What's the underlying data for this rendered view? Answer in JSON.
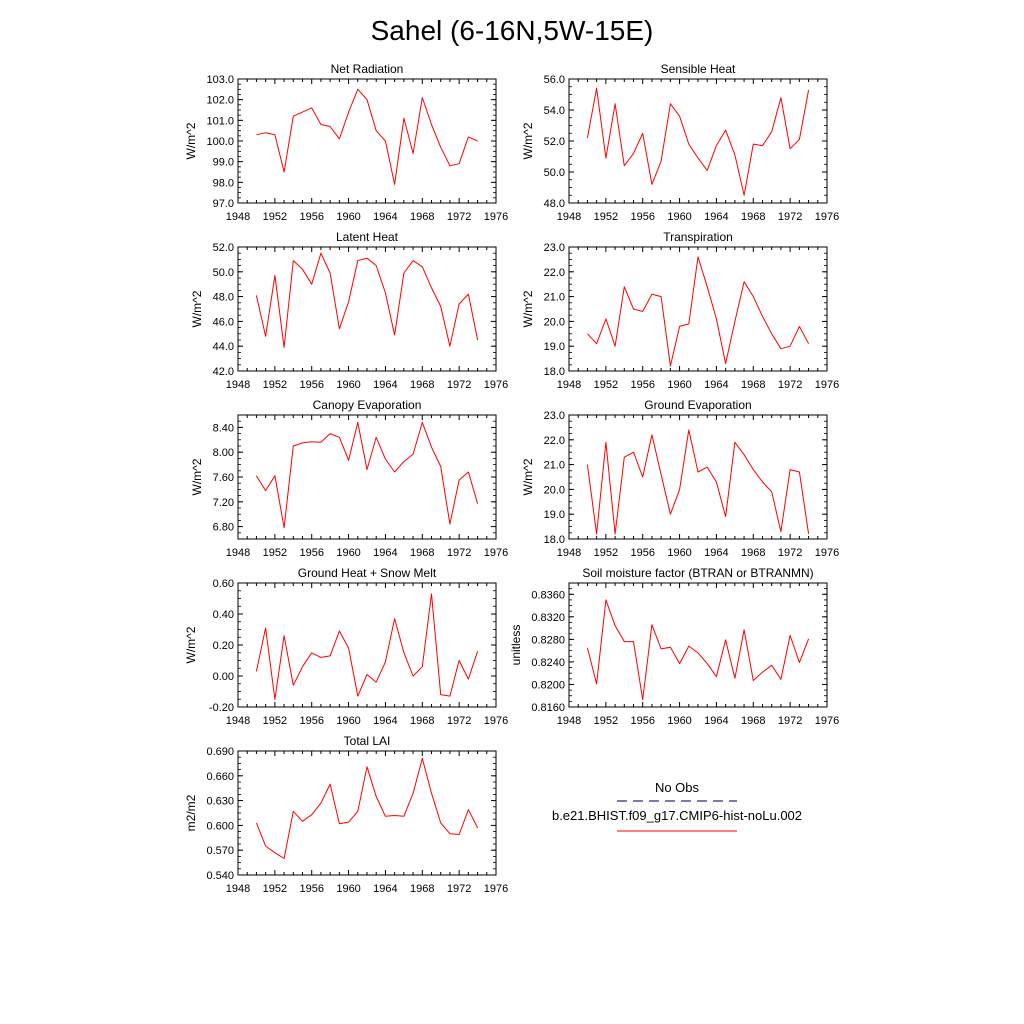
{
  "figure": {
    "title": "Sahel (6-16N,5W-15E)",
    "line_color": "#ff0000",
    "legend": {
      "obs_label": "No Obs",
      "model_label": "b.e21.BHIST.f09_g17.CMIP6-hist-noLu.002",
      "obs_color": "#4b4b9c",
      "model_color": "#ff0000"
    }
  },
  "chart_data": [
    {
      "type": "line",
      "title": "Net Radiation",
      "ylabel": "W/m^2",
      "xlim": [
        1948,
        1976
      ],
      "ylim": [
        97,
        103
      ],
      "x_ticks": [
        "1948",
        "1952",
        "1956",
        "1960",
        "1964",
        "1968",
        "1972",
        "1976"
      ],
      "y_ticks": [
        "97.0",
        "98.0",
        "99.0",
        "100.0",
        "101.0",
        "102.0",
        "103.0"
      ],
      "x": [
        1950,
        1951,
        1952,
        1953,
        1954,
        1955,
        1956,
        1957,
        1958,
        1959,
        1960,
        1961,
        1962,
        1963,
        1964,
        1965,
        1966,
        1967,
        1968,
        1969,
        1970,
        1971,
        1972,
        1973,
        1974
      ],
      "series": [
        {
          "values": [
            100.3,
            100.4,
            100.3,
            98.5,
            101.2,
            101.4,
            101.6,
            100.8,
            100.7,
            100.1,
            101.4,
            102.5,
            102.0,
            100.5,
            100.0,
            97.9,
            101.1,
            99.4,
            102.1,
            100.8,
            99.7,
            98.8,
            98.9,
            100.2,
            100.0
          ]
        }
      ]
    },
    {
      "type": "line",
      "title": "Sensible Heat",
      "ylabel": "W/m^2",
      "xlim": [
        1948,
        1976
      ],
      "ylim": [
        48,
        56
      ],
      "x_ticks": [
        "1948",
        "1952",
        "1956",
        "1960",
        "1964",
        "1968",
        "1972",
        "1976"
      ],
      "y_ticks": [
        "48.0",
        "50.0",
        "52.0",
        "54.0",
        "56.0"
      ],
      "x": [
        1950,
        1951,
        1952,
        1953,
        1954,
        1955,
        1956,
        1957,
        1958,
        1959,
        1960,
        1961,
        1962,
        1963,
        1964,
        1965,
        1966,
        1967,
        1968,
        1969,
        1970,
        1971,
        1972,
        1973,
        1974
      ],
      "series": [
        {
          "values": [
            52.2,
            55.4,
            50.9,
            54.4,
            50.4,
            51.2,
            52.5,
            49.2,
            50.7,
            54.4,
            53.6,
            51.8,
            50.9,
            50.1,
            51.7,
            52.7,
            51.1,
            48.5,
            51.8,
            51.7,
            52.6,
            54.8,
            51.5,
            52.1,
            55.3
          ]
        }
      ]
    },
    {
      "type": "line",
      "title": "Latent Heat",
      "ylabel": "W/m^2",
      "xlim": [
        1948,
        1976
      ],
      "ylim": [
        42,
        52
      ],
      "x_ticks": [
        "1948",
        "1952",
        "1956",
        "1960",
        "1964",
        "1968",
        "1972",
        "1976"
      ],
      "y_ticks": [
        "42.0",
        "44.0",
        "46.0",
        "48.0",
        "50.0",
        "52.0"
      ],
      "x": [
        1950,
        1951,
        1952,
        1953,
        1954,
        1955,
        1956,
        1957,
        1958,
        1959,
        1960,
        1961,
        1962,
        1963,
        1964,
        1965,
        1966,
        1967,
        1968,
        1969,
        1970,
        1971,
        1972,
        1973,
        1974
      ],
      "series": [
        {
          "values": [
            48.1,
            44.8,
            49.7,
            43.9,
            50.9,
            50.2,
            49.0,
            51.5,
            49.9,
            45.4,
            47.6,
            50.9,
            51.1,
            50.5,
            48.3,
            44.9,
            49.9,
            50.9,
            50.4,
            48.7,
            47.2,
            44.0,
            47.4,
            48.2,
            44.5
          ]
        }
      ]
    },
    {
      "type": "line",
      "title": "Transpiration",
      "ylabel": "W/m^2",
      "xlim": [
        1948,
        1976
      ],
      "ylim": [
        18,
        23
      ],
      "x_ticks": [
        "1948",
        "1952",
        "1956",
        "1960",
        "1964",
        "1968",
        "1972",
        "1976"
      ],
      "y_ticks": [
        "18.0",
        "19.0",
        "20.0",
        "21.0",
        "22.0",
        "23.0"
      ],
      "x": [
        1950,
        1951,
        1952,
        1953,
        1954,
        1955,
        1956,
        1957,
        1958,
        1959,
        1960,
        1961,
        1962,
        1963,
        1964,
        1965,
        1966,
        1967,
        1968,
        1969,
        1970,
        1971,
        1972,
        1973,
        1974
      ],
      "series": [
        {
          "values": [
            19.5,
            19.1,
            20.1,
            19.0,
            21.4,
            20.5,
            20.4,
            21.1,
            21.0,
            18.2,
            19.8,
            19.9,
            22.6,
            21.4,
            20.1,
            18.3,
            20.0,
            21.6,
            21.0,
            20.2,
            19.5,
            18.9,
            19.0,
            19.8,
            19.1
          ]
        }
      ]
    },
    {
      "type": "line",
      "title": "Canopy Evaporation",
      "ylabel": "W/m^2",
      "xlim": [
        1948,
        1976
      ],
      "ylim": [
        6.6,
        8.6
      ],
      "x_ticks": [
        "1948",
        "1952",
        "1956",
        "1960",
        "1964",
        "1968",
        "1972",
        "1976"
      ],
      "y_ticks": [
        "6.80",
        "7.20",
        "7.60",
        "8.00",
        "8.40"
      ],
      "x": [
        1950,
        1951,
        1952,
        1953,
        1954,
        1955,
        1956,
        1957,
        1958,
        1959,
        1960,
        1961,
        1962,
        1963,
        1964,
        1965,
        1966,
        1967,
        1968,
        1969,
        1970,
        1971,
        1972,
        1973,
        1974
      ],
      "series": [
        {
          "values": [
            7.62,
            7.38,
            7.62,
            6.78,
            8.1,
            8.15,
            8.17,
            8.16,
            8.3,
            8.24,
            7.87,
            8.48,
            7.72,
            8.24,
            7.89,
            7.68,
            7.85,
            7.97,
            8.48,
            8.08,
            7.77,
            6.84,
            7.55,
            7.68,
            7.17
          ]
        }
      ]
    },
    {
      "type": "line",
      "title": "Ground Evaporation",
      "ylabel": "W/m^2",
      "xlim": [
        1948,
        1976
      ],
      "ylim": [
        18,
        23
      ],
      "x_ticks": [
        "1948",
        "1952",
        "1956",
        "1960",
        "1964",
        "1968",
        "1972",
        "1976"
      ],
      "y_ticks": [
        "18.0",
        "19.0",
        "20.0",
        "21.0",
        "22.0",
        "23.0"
      ],
      "x": [
        1950,
        1951,
        1952,
        1953,
        1954,
        1955,
        1956,
        1957,
        1958,
        1959,
        1960,
        1961,
        1962,
        1963,
        1964,
        1965,
        1966,
        1967,
        1968,
        1969,
        1970,
        1971,
        1972,
        1973,
        1974
      ],
      "series": [
        {
          "values": [
            21.0,
            18.2,
            21.9,
            18.2,
            21.3,
            21.5,
            20.5,
            22.2,
            20.6,
            19.0,
            20.0,
            22.4,
            20.7,
            20.9,
            20.3,
            18.9,
            21.9,
            21.4,
            20.8,
            20.3,
            19.9,
            18.3,
            20.8,
            20.7,
            18.2
          ]
        }
      ]
    },
    {
      "type": "line",
      "title": "Ground Heat + Snow Melt",
      "ylabel": "W/m^2",
      "xlim": [
        1948,
        1976
      ],
      "ylim": [
        -0.2,
        0.6
      ],
      "x_ticks": [
        "1948",
        "1952",
        "1956",
        "1960",
        "1964",
        "1968",
        "1972",
        "1976"
      ],
      "y_ticks": [
        "-0.20",
        "0.00",
        "0.20",
        "0.40",
        "0.60"
      ],
      "x": [
        1950,
        1951,
        1952,
        1953,
        1954,
        1955,
        1956,
        1957,
        1958,
        1959,
        1960,
        1961,
        1962,
        1963,
        1964,
        1965,
        1966,
        1967,
        1968,
        1969,
        1970,
        1971,
        1972,
        1973,
        1974
      ],
      "series": [
        {
          "values": [
            0.03,
            0.31,
            -0.15,
            0.26,
            -0.06,
            0.06,
            0.15,
            0.12,
            0.13,
            0.29,
            0.18,
            -0.13,
            0.01,
            -0.04,
            0.09,
            0.37,
            0.15,
            0.0,
            0.06,
            0.53,
            -0.12,
            -0.13,
            0.1,
            -0.02,
            0.16
          ]
        }
      ]
    },
    {
      "type": "line",
      "title": "Soil moisture factor (BTRAN or BTRANMN)",
      "ylabel": "unitless",
      "xlim": [
        1948,
        1976
      ],
      "ylim": [
        0.816,
        0.838
      ],
      "x_ticks": [
        "1948",
        "1952",
        "1956",
        "1960",
        "1964",
        "1968",
        "1972",
        "1976"
      ],
      "y_ticks": [
        "0.8160",
        "0.8200",
        "0.8240",
        "0.8280",
        "0.8320",
        "0.8360"
      ],
      "x": [
        1950,
        1951,
        1952,
        1953,
        1954,
        1955,
        1956,
        1957,
        1958,
        1959,
        1960,
        1961,
        1962,
        1963,
        1964,
        1965,
        1966,
        1967,
        1968,
        1969,
        1970,
        1971,
        1972,
        1973,
        1974
      ],
      "series": [
        {
          "values": [
            0.8265,
            0.8201,
            0.835,
            0.8304,
            0.8276,
            0.8276,
            0.8173,
            0.8306,
            0.8263,
            0.8266,
            0.8237,
            0.8268,
            0.8256,
            0.8237,
            0.8214,
            0.8279,
            0.8211,
            0.8297,
            0.8207,
            0.8222,
            0.8234,
            0.8209,
            0.8287,
            0.8239,
            0.8281
          ]
        }
      ]
    },
    {
      "type": "line",
      "title": "Total LAI",
      "ylabel": "m2/m2",
      "xlim": [
        1948,
        1976
      ],
      "ylim": [
        0.54,
        0.69
      ],
      "x_ticks": [
        "1948",
        "1952",
        "1956",
        "1960",
        "1964",
        "1968",
        "1972",
        "1976"
      ],
      "y_ticks": [
        "0.540",
        "0.570",
        "0.600",
        "0.630",
        "0.660",
        "0.690"
      ],
      "x": [
        1950,
        1951,
        1952,
        1953,
        1954,
        1955,
        1956,
        1957,
        1958,
        1959,
        1960,
        1961,
        1962,
        1963,
        1964,
        1965,
        1966,
        1967,
        1968,
        1969,
        1970,
        1971,
        1972,
        1973,
        1974
      ],
      "series": [
        {
          "values": [
            0.603,
            0.575,
            0.567,
            0.56,
            0.617,
            0.605,
            0.613,
            0.627,
            0.65,
            0.602,
            0.604,
            0.617,
            0.671,
            0.635,
            0.611,
            0.612,
            0.611,
            0.639,
            0.681,
            0.639,
            0.603,
            0.59,
            0.589,
            0.619,
            0.597
          ]
        }
      ]
    }
  ]
}
